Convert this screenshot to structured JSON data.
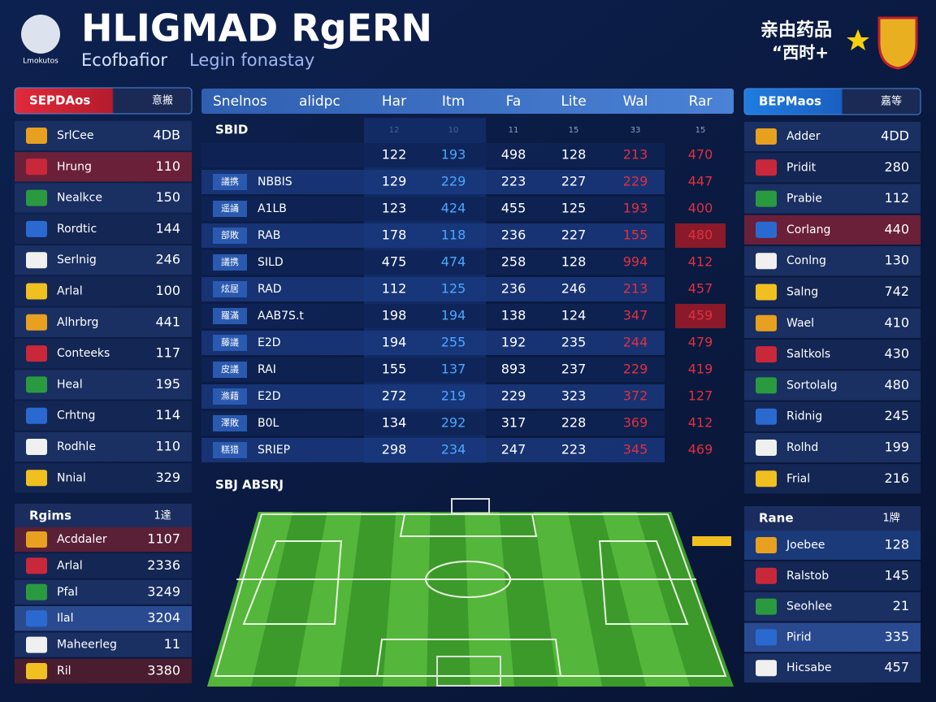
{
  "header": {
    "title": "HLIGMAD RgERN",
    "subtitle": "Ecofbafior",
    "subtitle2": "Legin fonastay",
    "logo_text": "Lmokutos",
    "right_text": "亲由药品",
    "right_text2": "“西时+"
  },
  "left_panel": {
    "header": [
      "SEPDAos",
      "意搬"
    ],
    "rows": [
      [
        "SrlCee",
        "4DB"
      ],
      [
        "Hrung",
        "110"
      ],
      [
        "Nealkce",
        "150"
      ],
      [
        "Rordtic",
        "144"
      ],
      [
        "Serlnig",
        "246"
      ],
      [
        "Arlal",
        "100"
      ],
      [
        "Alhrbrg",
        "441"
      ],
      [
        "Conteeks",
        "117"
      ],
      [
        "Heal",
        "195"
      ],
      [
        "Crhtng",
        "114"
      ],
      [
        "Rodhle",
        "110"
      ],
      [
        "Nnial",
        "329"
      ]
    ]
  },
  "left_bottom": {
    "header": [
      "Rgims",
      "1達"
    ],
    "rows": [
      [
        "Acddaler",
        "1107"
      ],
      [
        "Arlal",
        "2336"
      ],
      [
        "Pfal",
        "3249"
      ],
      [
        "Ilal",
        "3204"
      ],
      [
        "Maheerleg",
        "11"
      ],
      [
        "Ril",
        "3380"
      ]
    ]
  },
  "table": {
    "headers": [
      "Snelnos",
      "alidpc",
      "Har",
      "Itm",
      "Fa",
      "Lite",
      "Wal",
      "Rar"
    ],
    "sub_label": "SBID",
    "sub_values": [
      "12",
      "10",
      "11",
      "15",
      "33",
      "15"
    ],
    "rows": [
      [
        "",
        "",
        122,
        193,
        498,
        128,
        213,
        470
      ],
      [
        "議携",
        "NBBIS",
        129,
        229,
        223,
        227,
        229,
        447
      ],
      [
        "遥誦",
        "A1LB",
        123,
        424,
        455,
        125,
        193,
        400
      ],
      [
        "部敗",
        "RAB",
        178,
        118,
        236,
        227,
        155,
        480
      ],
      [
        "議携",
        "SILD",
        475,
        474,
        258,
        128,
        994,
        412
      ],
      [
        "炫居",
        "RAD",
        112,
        125,
        236,
        246,
        213,
        457
      ],
      [
        "羅滿",
        "AAB7S.t",
        198,
        194,
        138,
        124,
        347,
        459
      ],
      [
        "藤議",
        "E2D",
        194,
        255,
        192,
        235,
        244,
        479
      ],
      [
        "皮議",
        "RAI",
        155,
        137,
        893,
        237,
        229,
        419
      ],
      [
        "滌藉",
        "E2D",
        272,
        219,
        229,
        323,
        372,
        127
      ],
      [
        "澤敗",
        "B0L",
        134,
        292,
        317,
        228,
        369,
        412
      ],
      [
        "糕猎",
        "SRIEP",
        298,
        234,
        247,
        223,
        345,
        469
      ]
    ]
  },
  "pitch_label": "SBJ ABSRJ",
  "right_panel": {
    "header": [
      "BEPMaos",
      "嘉等"
    ],
    "rows": [
      [
        "Adder",
        "4DD"
      ],
      [
        "Pridit",
        "280"
      ],
      [
        "Prabie",
        "112"
      ],
      [
        "Corlang",
        "440"
      ],
      [
        "Conlng",
        "130"
      ],
      [
        "Salng",
        "742"
      ],
      [
        "Wael",
        "410"
      ],
      [
        "Saltkols",
        "430"
      ],
      [
        "Sortolalg",
        "480"
      ],
      [
        "Ridnig",
        "245"
      ],
      [
        "Rolhd",
        "199"
      ],
      [
        "Frial",
        "216"
      ]
    ]
  },
  "right_bottom": {
    "header": [
      "Rane",
      "1牌"
    ],
    "rows": [
      [
        "Joebee",
        "128"
      ],
      [
        "Ralstob",
        "145"
      ],
      [
        "Seohlee",
        "21"
      ],
      [
        "Pirid",
        "335"
      ],
      [
        "Hicsabe",
        "457"
      ]
    ]
  }
}
